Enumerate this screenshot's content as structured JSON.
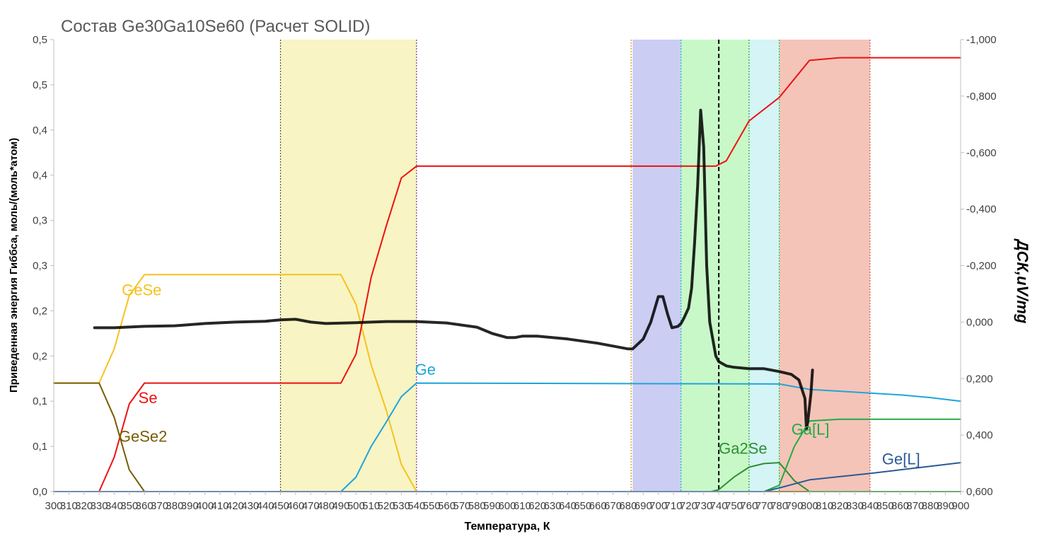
{
  "chart_data": {
    "type": "line",
    "title": "Состав Ge30Ga10Se60 (Расчет SOLID)",
    "xlabel": "Температура, К",
    "ylabel_left": "Приведенная энергия Гиббса, моль/(моль*атом)",
    "ylabel_right": "ДСК,uV/mg",
    "xlim": [
      300,
      900
    ],
    "x_ticks": [
      300,
      310,
      320,
      330,
      340,
      350,
      360,
      370,
      380,
      390,
      400,
      410,
      420,
      430,
      440,
      450,
      460,
      470,
      480,
      490,
      500,
      510,
      520,
      530,
      540,
      550,
      560,
      570,
      580,
      590,
      600,
      610,
      620,
      630,
      640,
      650,
      660,
      670,
      680,
      690,
      700,
      710,
      720,
      730,
      740,
      750,
      760,
      770,
      780,
      790,
      800,
      810,
      820,
      830,
      840,
      850,
      860,
      870,
      880,
      890,
      900
    ],
    "ylim_left": [
      0,
      0.5
    ],
    "y_left_tick_values": [
      0,
      0.05,
      0.1,
      0.15,
      0.2,
      0.25,
      0.3,
      0.35,
      0.4,
      0.45,
      0.5
    ],
    "y_left_tick_labels": [
      "0,0",
      "0,1",
      "0,1",
      "0,2",
      "0,2",
      "0,3",
      "0,3",
      "0,4",
      "0,4",
      "0,5",
      "0,5"
    ],
    "ylim_right": [
      0.6,
      -1.0
    ],
    "y_right_tick_values": [
      0.6,
      0.4,
      0.2,
      0.0,
      -0.2,
      -0.4,
      -0.6,
      -0.8,
      -1.0
    ],
    "y_right_tick_labels": [
      "0,600",
      "0,400",
      "0,200",
      "0,000",
      "-0,200",
      "-0,400",
      "-0,600",
      "-0,800",
      "-1,000"
    ],
    "grid": false,
    "legend": "none",
    "shaded_regions": [
      {
        "x": [
          450,
          540
        ],
        "color": "#f8f4c4"
      },
      {
        "x": [
          683,
          715
        ],
        "color": "#cbcdf3"
      },
      {
        "x": [
          715,
          760
        ],
        "color": "#c8f8c8"
      },
      {
        "x": [
          760,
          780
        ],
        "color": "#d4f4f6"
      },
      {
        "x": [
          780,
          840
        ],
        "color": "#f4c4b8"
      }
    ],
    "vertical_lines": [
      {
        "x": 450,
        "color": "#555500",
        "dash": "2,2"
      },
      {
        "x": 540,
        "color": "#7a3a8a",
        "dash": "2,2"
      },
      {
        "x": 682,
        "color": "#c89020",
        "dash": "2,2"
      },
      {
        "x": 715,
        "color": "#20b0d0",
        "dash": "2,2"
      },
      {
        "x": 740,
        "color": "#000000",
        "dash": "6,4"
      },
      {
        "x": 760,
        "color": "#30a030",
        "dash": "2,2"
      },
      {
        "x": 780,
        "color": "#30c030",
        "dash": "2,2"
      },
      {
        "x": 840,
        "color": "#e05050",
        "dash": "2,2"
      }
    ],
    "series": [
      {
        "name": "GeSe",
        "axis": "left",
        "color": "#f6c21e",
        "width": 2,
        "x": [
          300,
          330,
          340,
          350,
          360,
          450,
          490,
          500,
          510,
          520,
          530,
          540,
          900
        ],
        "y": [
          0.12,
          0.12,
          0.158,
          0.217,
          0.24,
          0.24,
          0.24,
          0.207,
          0.14,
          0.09,
          0.03,
          0,
          0
        ]
      },
      {
        "name": "Se",
        "axis": "left",
        "color": "#ee1111",
        "width": 2,
        "x": [
          300,
          330,
          340,
          350,
          360,
          450,
          490,
          500,
          510,
          520,
          530,
          540,
          715,
          738,
          745,
          760,
          780,
          800,
          820,
          830,
          900
        ],
        "y": [
          0,
          0,
          0.038,
          0.097,
          0.12,
          0.12,
          0.12,
          0.152,
          0.237,
          0.294,
          0.347,
          0.36,
          0.36,
          0.36,
          0.366,
          0.41,
          0.436,
          0.477,
          0.48,
          0.48,
          0.48
        ]
      },
      {
        "name": "GeSe2",
        "axis": "left",
        "color": "#7a5c00",
        "width": 2,
        "x": [
          300,
          330,
          340,
          350,
          360,
          900
        ],
        "y": [
          0.12,
          0.12,
          0.082,
          0.024,
          0,
          0
        ]
      },
      {
        "name": "Ge",
        "axis": "left",
        "color": "#1fa4dc",
        "width": 2,
        "x": [
          300,
          490,
          500,
          510,
          520,
          530,
          540,
          780,
          800,
          820,
          840,
          860,
          880,
          900
        ],
        "y": [
          0,
          0,
          0.016,
          0.05,
          0.077,
          0.105,
          0.12,
          0.119,
          0.113,
          0.111,
          0.109,
          0.107,
          0.104,
          0.1
        ]
      },
      {
        "name": "Ga2Se",
        "axis": "left",
        "color": "#2f8f2f",
        "width": 2,
        "x": [
          300,
          735,
          740,
          750,
          760,
          770,
          780,
          790,
          800,
          900
        ],
        "y": [
          0,
          0,
          0.002,
          0.016,
          0.027,
          0.031,
          0.032,
          0.012,
          0,
          0
        ]
      },
      {
        "name": "Ga[L]",
        "axis": "left",
        "color": "#22aa44",
        "width": 2,
        "x": [
          300,
          770,
          780,
          790,
          800,
          820,
          840,
          900
        ],
        "y": [
          0,
          0,
          0.007,
          0.05,
          0.078,
          0.08,
          0.08,
          0.08
        ]
      },
      {
        "name": "Ge[L]",
        "axis": "left",
        "color": "#2a5a96",
        "width": 2,
        "x": [
          300,
          770,
          780,
          800,
          840,
          860,
          880,
          900
        ],
        "y": [
          0,
          0,
          0.004,
          0.013,
          0.02,
          0.024,
          0.028,
          0.032
        ]
      },
      {
        "name": "ДСК",
        "axis": "right",
        "color": "#000000",
        "width": 4,
        "x": [
          327,
          340,
          360,
          380,
          400,
          420,
          440,
          450,
          460,
          470,
          480,
          500,
          520,
          540,
          560,
          580,
          590,
          600,
          605,
          610,
          620,
          640,
          660,
          675,
          680,
          683,
          687,
          690,
          695,
          700,
          703,
          706,
          709,
          713,
          715,
          717,
          720,
          722,
          724,
          726,
          728,
          730,
          732,
          734,
          736,
          738,
          740,
          745,
          750,
          760,
          770,
          775,
          780,
          788,
          793,
          797,
          798,
          799,
          800,
          801,
          802
        ],
        "y": [
          0.02,
          0.02,
          0.015,
          0.013,
          0.005,
          0.0,
          -0.003,
          -0.008,
          -0.01,
          0.0,
          0.005,
          0.002,
          -0.002,
          -0.002,
          0.003,
          0.018,
          0.04,
          0.055,
          0.055,
          0.05,
          0.05,
          0.06,
          0.075,
          0.09,
          0.095,
          0.095,
          0.075,
          0.06,
          0.0,
          -0.09,
          -0.09,
          -0.03,
          0.02,
          0.015,
          0.005,
          -0.015,
          -0.05,
          -0.12,
          -0.28,
          -0.48,
          -0.75,
          -0.62,
          -0.2,
          0.0,
          0.06,
          0.12,
          0.14,
          0.155,
          0.16,
          0.165,
          0.165,
          0.17,
          0.175,
          0.185,
          0.205,
          0.27,
          0.38,
          0.345,
          0.3,
          0.25,
          0.17
        ]
      }
    ],
    "labels": [
      {
        "text": "GeSe",
        "x": 345,
        "y": 0.217,
        "color": "#f6c21e"
      },
      {
        "text": "Se",
        "x": 356,
        "y": 0.098,
        "color": "#ee1111"
      },
      {
        "text": "GeSe2",
        "x": 343,
        "y": 0.055,
        "color": "#7a5c00"
      },
      {
        "text": "Ge",
        "x": 539,
        "y": 0.129,
        "color": "#1fa4dc"
      },
      {
        "text": "Ga2Se",
        "x": 740,
        "y": 0.042,
        "color": "#2f8f2f"
      },
      {
        "text": "Ga[L]",
        "x": 788,
        "y": 0.063,
        "color": "#22aa44"
      },
      {
        "text": "Ge[L]",
        "x": 848,
        "y": 0.03,
        "color": "#2a5a96"
      }
    ]
  }
}
